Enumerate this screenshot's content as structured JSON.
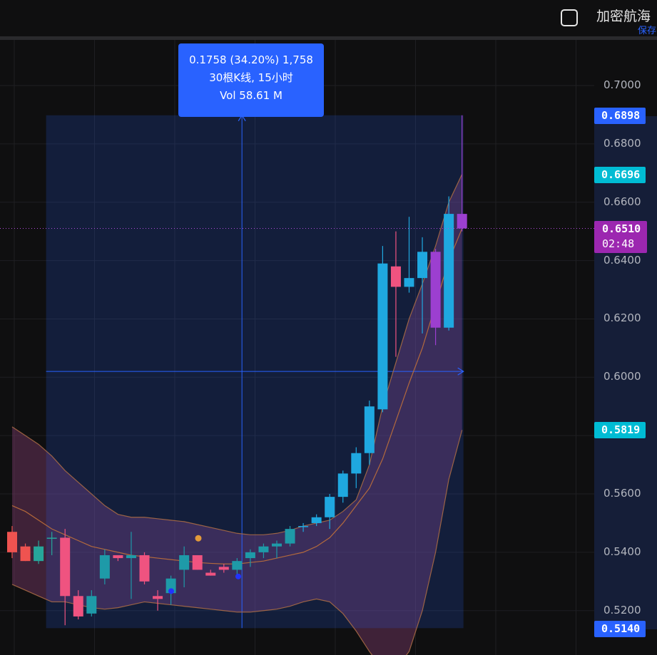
{
  "header": {
    "title": "加密航海",
    "save_label": "保存"
  },
  "measure_tooltip": {
    "line1": "0.1758 (34.20%) 1,758",
    "line2": "30根K线, 15小时",
    "line3": "Vol 58.61 M"
  },
  "price_tags": {
    "measure_top": "0.6898",
    "band_upper": "0.6696",
    "current": "0.6510",
    "countdown": "02:48",
    "band_lower": "0.5819",
    "measure_bottom": "0.5140"
  },
  "colors": {
    "up": "#26a69a",
    "down": "#ef5350",
    "highlight_up": "#1fa8e0",
    "highlight_down": "#ef5380",
    "measure_fill": "#2962ff",
    "current_tag": "#9c27b0",
    "band_tag": "#00bcd4"
  },
  "chart_data": {
    "type": "candlestick",
    "y_axis_ticks": [
      "0.7000",
      "0.6800",
      "0.6600",
      "0.6400",
      "0.6200",
      "0.6000",
      "0.5800",
      "0.5600",
      "0.5400",
      "0.5200"
    ],
    "ylim": [
      0.507,
      0.7195
    ],
    "candles": [
      {
        "o": 0.547,
        "h": 0.549,
        "l": 0.538,
        "c": 0.54
      },
      {
        "o": 0.542,
        "h": 0.543,
        "l": 0.537,
        "c": 0.537
      },
      {
        "o": 0.537,
        "h": 0.544,
        "l": 0.536,
        "c": 0.542
      },
      {
        "o": 0.545,
        "h": 0.547,
        "l": 0.539,
        "c": 0.545
      },
      {
        "o": 0.545,
        "h": 0.548,
        "l": 0.515,
        "c": 0.525
      },
      {
        "o": 0.525,
        "h": 0.527,
        "l": 0.517,
        "c": 0.518
      },
      {
        "o": 0.519,
        "h": 0.527,
        "l": 0.518,
        "c": 0.525
      },
      {
        "o": 0.531,
        "h": 0.541,
        "l": 0.529,
        "c": 0.539
      },
      {
        "o": 0.539,
        "h": 0.539,
        "l": 0.537,
        "c": 0.538
      },
      {
        "o": 0.538,
        "h": 0.547,
        "l": 0.524,
        "c": 0.539
      },
      {
        "o": 0.539,
        "h": 0.54,
        "l": 0.529,
        "c": 0.53
      },
      {
        "o": 0.525,
        "h": 0.527,
        "l": 0.52,
        "c": 0.524
      },
      {
        "o": 0.526,
        "h": 0.532,
        "l": 0.522,
        "c": 0.531
      },
      {
        "o": 0.534,
        "h": 0.542,
        "l": 0.528,
        "c": 0.539
      },
      {
        "o": 0.539,
        "h": 0.539,
        "l": 0.534,
        "c": 0.534
      },
      {
        "o": 0.533,
        "h": 0.534,
        "l": 0.532,
        "c": 0.532
      },
      {
        "o": 0.535,
        "h": 0.536,
        "l": 0.533,
        "c": 0.534
      },
      {
        "o": 0.534,
        "h": 0.538,
        "l": 0.531,
        "c": 0.537
      },
      {
        "o": 0.538,
        "h": 0.541,
        "l": 0.535,
        "c": 0.54
      },
      {
        "o": 0.54,
        "h": 0.543,
        "l": 0.538,
        "c": 0.542
      },
      {
        "o": 0.542,
        "h": 0.544,
        "l": 0.538,
        "c": 0.543
      },
      {
        "o": 0.543,
        "h": 0.549,
        "l": 0.542,
        "c": 0.548
      },
      {
        "o": 0.549,
        "h": 0.55,
        "l": 0.547,
        "c": 0.549
      },
      {
        "o": 0.55,
        "h": 0.553,
        "l": 0.549,
        "c": 0.552
      },
      {
        "o": 0.552,
        "h": 0.56,
        "l": 0.548,
        "c": 0.559
      },
      {
        "o": 0.559,
        "h": 0.568,
        "l": 0.557,
        "c": 0.567
      },
      {
        "o": 0.567,
        "h": 0.576,
        "l": 0.562,
        "c": 0.574
      },
      {
        "o": 0.574,
        "h": 0.592,
        "l": 0.57,
        "c": 0.59
      },
      {
        "o": 0.589,
        "h": 0.645,
        "l": 0.588,
        "c": 0.639
      },
      {
        "o": 0.638,
        "h": 0.65,
        "l": 0.607,
        "c": 0.631
      },
      {
        "o": 0.631,
        "h": 0.655,
        "l": 0.629,
        "c": 0.634
      },
      {
        "o": 0.634,
        "h": 0.648,
        "l": 0.615,
        "c": 0.643
      },
      {
        "o": 0.643,
        "h": 0.644,
        "l": 0.611,
        "c": 0.617
      },
      {
        "o": 0.617,
        "h": 0.662,
        "l": 0.616,
        "c": 0.656
      },
      {
        "o": 0.656,
        "h": 0.6898,
        "l": 0.65,
        "c": 0.651
      }
    ],
    "bollinger": {
      "upper": [
        0.583,
        0.58,
        0.577,
        0.573,
        0.568,
        0.564,
        0.56,
        0.556,
        0.553,
        0.552,
        0.552,
        0.5515,
        0.551,
        0.5505,
        0.5495,
        0.5485,
        0.5475,
        0.5465,
        0.546,
        0.546,
        0.5465,
        0.5475,
        0.549,
        0.55,
        0.551,
        0.554,
        0.558,
        0.57,
        0.59,
        0.605,
        0.62,
        0.632,
        0.645,
        0.66,
        0.6696
      ],
      "middle": [
        0.556,
        0.554,
        0.551,
        0.548,
        0.546,
        0.544,
        0.542,
        0.541,
        0.54,
        0.539,
        0.5385,
        0.538,
        0.5375,
        0.537,
        0.5365,
        0.5362,
        0.536,
        0.536,
        0.5365,
        0.537,
        0.538,
        0.539,
        0.54,
        0.542,
        0.545,
        0.55,
        0.556,
        0.562,
        0.572,
        0.585,
        0.598,
        0.61,
        0.625,
        0.64,
        0.651
      ],
      "lower": [
        0.529,
        0.527,
        0.525,
        0.523,
        0.523,
        0.522,
        0.521,
        0.5205,
        0.521,
        0.522,
        0.523,
        0.5225,
        0.522,
        0.5215,
        0.521,
        0.5205,
        0.52,
        0.5195,
        0.5195,
        0.52,
        0.5205,
        0.5215,
        0.523,
        0.524,
        0.523,
        0.519,
        0.513,
        0.506,
        0.5,
        0.5,
        0.506,
        0.52,
        0.54,
        0.565,
        0.5819
      ]
    },
    "measure": {
      "from": 0.514,
      "to": 0.6898,
      "change": "0.1758 (34.20%) 1,758",
      "bars": "30根K线, 15小时",
      "volume": "Vol 58.61 M"
    },
    "grid": true
  }
}
